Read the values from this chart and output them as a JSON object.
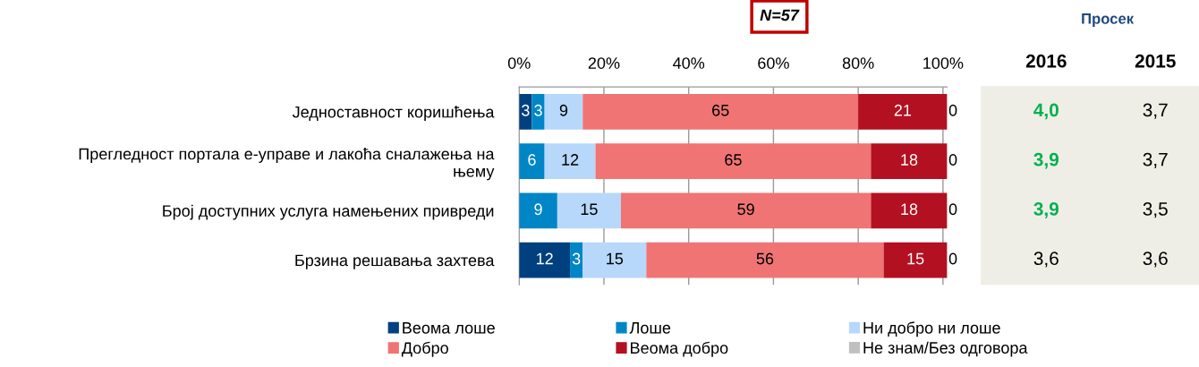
{
  "chart_data": [
    {
      "type": "bar",
      "orientation": "horizontal",
      "stacked": true,
      "data_labels": true,
      "grid": "x",
      "legend": "bottom",
      "annotations": [
        "N=57"
      ],
      "categories": [
        "Једноставност коришћења",
        "Прегледност портала е-управе и лакоћа сналажења на\nњему",
        "Број доступних услуга намењених привреди",
        "Брзина решавања захтева"
      ],
      "xlim": [
        0,
        101
      ],
      "xticks": [
        {
          "value": 0,
          "label": "0%"
        },
        {
          "value": 20,
          "label": "20%"
        },
        {
          "value": 40,
          "label": "40%"
        },
        {
          "value": 60,
          "label": "60%"
        },
        {
          "value": 80,
          "label": "80%"
        },
        {
          "value": 100,
          "label": "100%"
        }
      ],
      "series": [
        {
          "name": "Веома лоше",
          "color": "#00407f",
          "values": [
            3,
            0,
            0,
            12
          ],
          "value_labels": [
            "3",
            null,
            null,
            "12"
          ]
        },
        {
          "name": "Лоше",
          "color": "#0086c6",
          "values": [
            3,
            6,
            9,
            3
          ]
        },
        {
          "name": "Ни добро ни лоше",
          "color": "#b7d8fb",
          "values": [
            9,
            12,
            15,
            15
          ]
        },
        {
          "name": "Добро",
          "color": "#f07474",
          "values": [
            65,
            65,
            59,
            56
          ]
        },
        {
          "name": "Веома добро",
          "color": "#b31021",
          "values": [
            21,
            18,
            18,
            15
          ]
        },
        {
          "name": "Не знам/Без одговора",
          "color": "#c0c0c0",
          "values": [
            0,
            0,
            0,
            0
          ]
        }
      ]
    },
    {
      "type": "other",
      "title": "Просек",
      "categories": [
        "2016",
        "2015"
      ],
      "cell_labels": [
        [
          "4,0",
          "3,7"
        ],
        [
          "3,9",
          "3,7"
        ],
        [
          "3,9",
          "3,5"
        ],
        [
          "3,6",
          "3,6"
        ]
      ],
      "colors": [
        [
          "#00b050",
          "#000000"
        ],
        [
          "#00b050",
          "#000000"
        ],
        [
          "#00b050",
          "#000000"
        ],
        [
          "#000000",
          "#000000"
        ]
      ]
    }
  ]
}
